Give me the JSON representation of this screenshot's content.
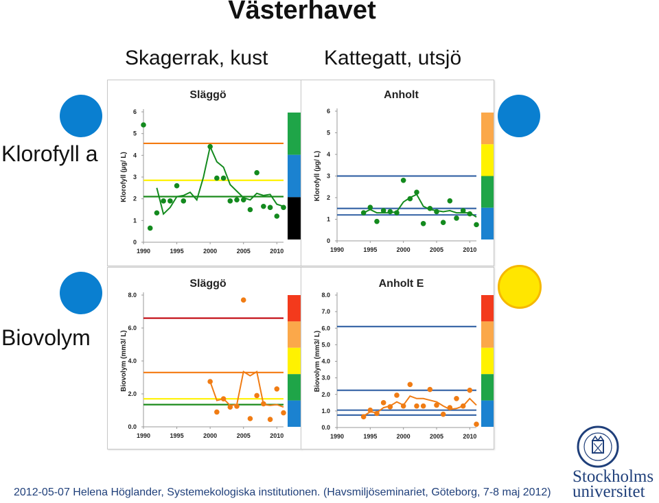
{
  "header": {
    "title": "Västerhavet",
    "columns": [
      "Skagerrak, kust",
      "Kattegatt, utsjö"
    ]
  },
  "rows": [
    "Klorofyll a",
    "Biovolym"
  ],
  "status_colors": {
    "blue": "#0a7fd0",
    "yellow": "#ffe600",
    "yellow_border": "#f5b800"
  },
  "scale_colors": [
    "#f33a1c",
    "#fba84a",
    "#fff200",
    "#1fa548",
    "#1b82d0"
  ],
  "footer": {
    "text": "2012-05-07 Helena Höglander, Systemekologiska institutionen. (Havsmiljöseminariet, Göteborg, 7-8 maj 2012)"
  },
  "logo": {
    "line1": "Stockholms",
    "line2": "universitet"
  },
  "chart_data": [
    {
      "id": "slaggo-klorofyll",
      "type": "line",
      "title": "Släggö",
      "ylabel": "Klorofyll (µg/ L)",
      "xlim": [
        1990,
        2011
      ],
      "ylim": [
        0,
        6
      ],
      "yticks": [
        0,
        1,
        2,
        3,
        4,
        5,
        6
      ],
      "ytick_labels": [
        "0",
        "1",
        "2",
        "3",
        "4",
        "5",
        "6"
      ],
      "xticks": [
        1990,
        1995,
        2000,
        2005,
        2010
      ],
      "scale_bands": [
        3,
        4,
        5
      ],
      "thresholds": [
        {
          "value": 4.55,
          "color": "#f47a10"
        },
        {
          "value": 2.85,
          "color": "#fff200"
        },
        {
          "value": 2.1,
          "color": "#1a8a1a"
        }
      ],
      "points_color": "#138a1e",
      "points": [
        [
          1990,
          5.4
        ],
        [
          1991,
          0.65
        ],
        [
          1992,
          1.35
        ],
        [
          1993,
          1.9
        ],
        [
          1994,
          1.9
        ],
        [
          1995,
          2.6
        ],
        [
          1996,
          1.9
        ],
        [
          2000,
          4.4
        ],
        [
          2001,
          2.95
        ],
        [
          2002,
          2.95
        ],
        [
          2003,
          1.9
        ],
        [
          2004,
          1.95
        ],
        [
          2005,
          1.95
        ],
        [
          2006,
          1.5
        ],
        [
          2007,
          3.2
        ],
        [
          2008,
          1.65
        ],
        [
          2009,
          1.6
        ],
        [
          2010,
          1.2
        ],
        [
          2011,
          1.6
        ]
      ],
      "trend": [
        [
          1992,
          2.5
        ],
        [
          1993,
          1.3
        ],
        [
          1994,
          1.6
        ],
        [
          1995,
          2.1
        ],
        [
          1996,
          2.15
        ],
        [
          1997,
          2.3
        ],
        [
          1998,
          1.95
        ],
        [
          1999,
          3.0
        ],
        [
          2000,
          4.4
        ],
        [
          2001,
          3.7
        ],
        [
          2002,
          3.45
        ],
        [
          2003,
          2.65
        ],
        [
          2004,
          2.35
        ],
        [
          2005,
          2.05
        ],
        [
          2006,
          1.95
        ],
        [
          2007,
          2.25
        ],
        [
          2008,
          2.15
        ],
        [
          2009,
          2.2
        ],
        [
          2010,
          1.75
        ],
        [
          2011,
          1.65
        ]
      ],
      "trend_color": "#138a1e"
    },
    {
      "id": "anholt-klorofyll",
      "type": "line",
      "title": "Anholt",
      "ylabel": "Klorofyll (µg/ L)",
      "xlim": [
        1990,
        2011
      ],
      "ylim": [
        0,
        6
      ],
      "yticks": [
        0,
        1,
        2,
        3,
        4,
        5,
        6
      ],
      "ytick_labels": [
        "0",
        "1",
        "2",
        "3",
        "4",
        "5",
        "6"
      ],
      "xticks": [
        1990,
        1995,
        2000,
        2005,
        2010
      ],
      "scale_bands": [
        1,
        2,
        3,
        4
      ],
      "thresholds": [
        {
          "value": 3.0,
          "color": "#3b68a8"
        },
        {
          "value": 1.5,
          "color": "#3b68a8"
        },
        {
          "value": 1.2,
          "color": "#3b68a8"
        }
      ],
      "points_color": "#138a1e",
      "points": [
        [
          1994,
          1.3
        ],
        [
          1995,
          1.55
        ],
        [
          1996,
          0.9
        ],
        [
          1997,
          1.4
        ],
        [
          1998,
          1.35
        ],
        [
          1999,
          1.3
        ],
        [
          2000,
          2.8
        ],
        [
          2001,
          1.95
        ],
        [
          2002,
          2.25
        ],
        [
          2003,
          0.8
        ],
        [
          2004,
          1.5
        ],
        [
          2005,
          1.35
        ],
        [
          2006,
          0.85
        ],
        [
          2007,
          1.85
        ],
        [
          2008,
          1.05
        ],
        [
          2009,
          1.4
        ],
        [
          2010,
          1.25
        ],
        [
          2011,
          0.75
        ]
      ],
      "trend": [
        [
          1994,
          1.3
        ],
        [
          1995,
          1.45
        ],
        [
          1996,
          1.3
        ],
        [
          1997,
          1.3
        ],
        [
          1998,
          1.3
        ],
        [
          1999,
          1.35
        ],
        [
          2000,
          1.8
        ],
        [
          2001,
          2.0
        ],
        [
          2002,
          2.15
        ],
        [
          2003,
          1.6
        ],
        [
          2004,
          1.45
        ],
        [
          2005,
          1.4
        ],
        [
          2006,
          1.35
        ],
        [
          2007,
          1.4
        ],
        [
          2008,
          1.3
        ],
        [
          2009,
          1.3
        ],
        [
          2010,
          1.3
        ],
        [
          2011,
          1.1
        ]
      ],
      "trend_color": "#138a1e"
    },
    {
      "id": "slaggo-biovolym",
      "type": "line",
      "title": "Släggö",
      "ylabel": "Biovolym (mm3/ L)",
      "xlim": [
        1990,
        2011
      ],
      "ylim": [
        0,
        8
      ],
      "yticks": [
        0,
        2,
        4,
        6,
        8
      ],
      "ytick_labels": [
        "0.0",
        "2.0",
        "4.0",
        "6.0",
        "8.0"
      ],
      "xticks": [
        1990,
        1995,
        2000,
        2005,
        2010
      ],
      "scale_bands": [
        0,
        1,
        2,
        3,
        4
      ],
      "thresholds": [
        {
          "value": 6.6,
          "color": "#c4121a"
        },
        {
          "value": 3.3,
          "color": "#f47a10"
        },
        {
          "value": 1.7,
          "color": "#fff200"
        },
        {
          "value": 1.35,
          "color": "#1a8a1a"
        }
      ],
      "points_color": "#f07c14",
      "points": [
        [
          2000,
          2.75
        ],
        [
          2001,
          0.9
        ],
        [
          2002,
          1.7
        ],
        [
          2003,
          1.2
        ],
        [
          2004,
          1.25
        ],
        [
          2005,
          7.7
        ],
        [
          2006,
          0.5
        ],
        [
          2007,
          1.9
        ],
        [
          2008,
          1.4
        ],
        [
          2009,
          0.45
        ],
        [
          2010,
          2.3
        ],
        [
          2011,
          0.85
        ]
      ],
      "trend": [
        [
          2000,
          2.75
        ],
        [
          2001,
          1.6
        ],
        [
          2002,
          1.7
        ],
        [
          2003,
          1.3
        ],
        [
          2004,
          1.35
        ],
        [
          2005,
          3.35
        ],
        [
          2006,
          3.1
        ],
        [
          2007,
          3.35
        ],
        [
          2008,
          1.35
        ],
        [
          2009,
          1.3
        ],
        [
          2010,
          1.35
        ],
        [
          2011,
          1.2
        ]
      ],
      "trend_color": "#f07c14"
    },
    {
      "id": "anholt-e-biovolym",
      "type": "line",
      "title": "Anholt E",
      "ylabel": "Biovolym (mm3/ L)",
      "xlim": [
        1990,
        2011
      ],
      "ylim": [
        0,
        8
      ],
      "yticks": [
        0,
        1,
        2,
        3,
        4,
        5,
        6,
        7,
        8
      ],
      "ytick_labels": [
        "0.0",
        "1.0",
        "2.0",
        "3.0",
        "4.0",
        "5.0",
        "6.0",
        "7.0",
        "8.0"
      ],
      "xticks": [
        1990,
        1995,
        2000,
        2005,
        2010
      ],
      "scale_bands": [
        0,
        1,
        2,
        3,
        4
      ],
      "thresholds": [
        {
          "value": 6.1,
          "color": "#3b68a8"
        },
        {
          "value": 2.25,
          "color": "#3b68a8"
        },
        {
          "value": 1.05,
          "color": "#3b68a8"
        },
        {
          "value": 0.75,
          "color": "#3b68a8"
        }
      ],
      "points_color": "#f07c14",
      "points": [
        [
          1994,
          0.65
        ],
        [
          1995,
          1.05
        ],
        [
          1996,
          0.85
        ],
        [
          1997,
          1.5
        ],
        [
          1998,
          1.25
        ],
        [
          1999,
          1.95
        ],
        [
          2000,
          1.3
        ],
        [
          2001,
          2.6
        ],
        [
          2002,
          1.3
        ],
        [
          2003,
          1.3
        ],
        [
          2004,
          2.3
        ],
        [
          2005,
          1.35
        ],
        [
          2006,
          0.8
        ],
        [
          2007,
          1.2
        ],
        [
          2008,
          1.75
        ],
        [
          2009,
          1.3
        ],
        [
          2010,
          2.25
        ],
        [
          2011,
          0.2
        ]
      ],
      "trend": [
        [
          1994,
          0.7
        ],
        [
          1995,
          0.95
        ],
        [
          1996,
          0.9
        ],
        [
          1997,
          1.2
        ],
        [
          1998,
          1.3
        ],
        [
          1999,
          1.55
        ],
        [
          2000,
          1.35
        ],
        [
          2001,
          1.9
        ],
        [
          2002,
          1.75
        ],
        [
          2003,
          1.75
        ],
        [
          2004,
          1.65
        ],
        [
          2005,
          1.55
        ],
        [
          2006,
          1.3
        ],
        [
          2007,
          1.1
        ],
        [
          2008,
          1.15
        ],
        [
          2009,
          1.3
        ],
        [
          2010,
          1.75
        ],
        [
          2011,
          1.35
        ]
      ],
      "trend_color": "#f07c14"
    }
  ]
}
